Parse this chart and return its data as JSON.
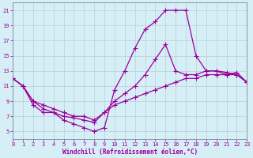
{
  "xlabel": "Windchill (Refroidissement éolien,°C)",
  "bg_color": "#d6eef5",
  "line_color": "#990099",
  "grid_color": "#b8cfd8",
  "xlim": [
    0,
    23
  ],
  "ylim": [
    4,
    22
  ],
  "xticks": [
    0,
    1,
    2,
    3,
    4,
    5,
    6,
    7,
    8,
    9,
    10,
    11,
    12,
    13,
    14,
    15,
    16,
    17,
    18,
    19,
    20,
    21,
    22,
    23
  ],
  "yticks": [
    5,
    7,
    9,
    11,
    13,
    15,
    17,
    19,
    21
  ],
  "curve1_x": [
    0,
    1,
    2,
    3,
    4,
    5,
    6,
    7,
    8,
    9,
    10,
    11,
    12,
    13,
    14,
    15,
    16,
    17,
    18,
    19,
    20,
    21,
    22,
    23
  ],
  "curve1_y": [
    12.0,
    11.0,
    9.0,
    8.5,
    8.0,
    7.5,
    7.0,
    7.0,
    6.5,
    7.5,
    8.5,
    9.0,
    9.5,
    10.0,
    10.5,
    11.0,
    11.5,
    12.0,
    12.0,
    12.5,
    12.5,
    12.5,
    12.8,
    11.5
  ],
  "curve2_x": [
    0,
    1,
    2,
    3,
    4,
    5,
    6,
    7,
    8,
    9,
    10,
    11,
    12,
    13,
    14,
    15,
    16,
    17,
    18,
    19,
    20,
    21,
    22,
    23
  ],
  "curve2_y": [
    12.0,
    11.0,
    9.0,
    8.0,
    7.5,
    7.0,
    6.8,
    6.5,
    6.2,
    7.5,
    9.0,
    10.0,
    11.0,
    12.5,
    14.5,
    16.5,
    13.0,
    12.5,
    12.5,
    13.0,
    13.0,
    12.5,
    12.5,
    11.5
  ],
  "curve3_x": [
    0,
    1,
    2,
    3,
    4,
    5,
    6,
    7,
    8,
    9,
    10,
    11,
    12,
    13,
    14,
    15,
    16,
    17,
    18,
    19,
    20,
    21,
    22,
    23
  ],
  "curve3_y": [
    12.0,
    11.0,
    8.5,
    7.5,
    7.5,
    6.5,
    6.0,
    5.5,
    5.0,
    5.5,
    10.5,
    13.0,
    16.0,
    18.5,
    19.5,
    21.0,
    21.0,
    21.0,
    15.0,
    13.0,
    13.0,
    12.8,
    12.5,
    11.5
  ],
  "marker": "+",
  "markersize": 4,
  "linewidth": 0.9,
  "tick_fontsize": 5,
  "xlabel_fontsize": 5.5
}
